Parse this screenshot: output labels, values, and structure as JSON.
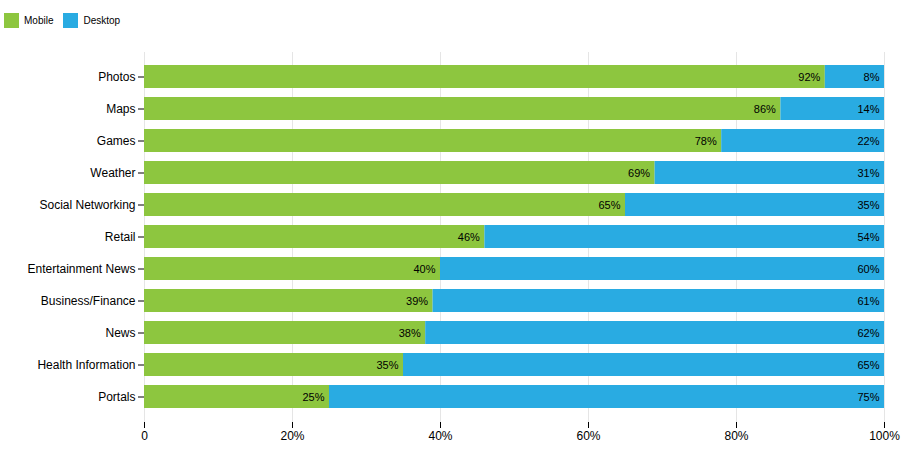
{
  "chart_data": {
    "type": "bar",
    "orientation": "horizontal",
    "stacked": true,
    "data_labels": true,
    "grid": true,
    "legend": "top",
    "categories": [
      "Photos",
      "Maps",
      "Games",
      "Weather",
      "Social Networking",
      "Retail",
      "Entertainment News",
      "Business/Finance",
      "News",
      "Health Information",
      "Portals"
    ],
    "series": [
      {
        "name": "Mobile",
        "color": "#8dc63f",
        "values": [
          92,
          86,
          78,
          69,
          65,
          46,
          40,
          39,
          38,
          35,
          25
        ],
        "value_labels": [
          "92%",
          "86%",
          "78%",
          "69%",
          "65%",
          "46%",
          "40%",
          "39%",
          "38%",
          "35%",
          "25%"
        ]
      },
      {
        "name": "Desktop",
        "color": "#29abe2",
        "values": [
          8,
          14,
          22,
          31,
          35,
          54,
          60,
          61,
          62,
          65,
          75
        ],
        "value_labels": [
          "8%",
          "14%",
          "22%",
          "31%",
          "35%",
          "54%",
          "60%",
          "61%",
          "62%",
          "65%",
          "75%"
        ]
      }
    ],
    "xlim": [
      0,
      100
    ],
    "xticks": [
      0,
      {
        "value": 20,
        "label": "20%"
      },
      {
        "value": 40,
        "label": "40%"
      },
      {
        "value": 60,
        "label": "60%"
      },
      {
        "value": 80,
        "label": "80%"
      },
      {
        "value": 100,
        "label": "100%"
      }
    ]
  }
}
